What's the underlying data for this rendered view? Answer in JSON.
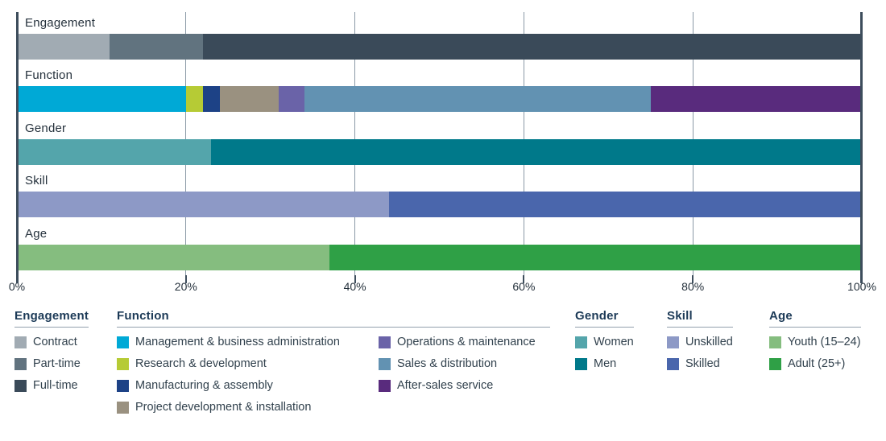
{
  "chart_data": {
    "type": "bar",
    "orientation": "horizontal-stacked",
    "title": "",
    "xlabel": "",
    "ylabel": "",
    "unit": "percent",
    "xlim": [
      0,
      100
    ],
    "grid": true,
    "x_tick_labels": [
      "0%",
      "20%",
      "40%",
      "60%",
      "80%",
      "100%"
    ],
    "x_ticks_pct": [
      0,
      20,
      40,
      60,
      80,
      100
    ],
    "rows": [
      {
        "label": "Engagement",
        "segments": [
          {
            "name": "Contract",
            "value": 11
          },
          {
            "name": "Part-time",
            "value": 11
          },
          {
            "name": "Full-time",
            "value": 78
          }
        ]
      },
      {
        "label": "Function",
        "segments": [
          {
            "name": "Management & business administration",
            "value": 20
          },
          {
            "name": "Research & development",
            "value": 2
          },
          {
            "name": "Manufacturing & assembly",
            "value": 2
          },
          {
            "name": "Project development & installation",
            "value": 7
          },
          {
            "name": "Operations & maintenance",
            "value": 3
          },
          {
            "name": "Sales & distribution",
            "value": 41
          },
          {
            "name": "After-sales service",
            "value": 25
          }
        ]
      },
      {
        "label": "Gender",
        "segments": [
          {
            "name": "Women",
            "value": 23
          },
          {
            "name": "Men",
            "value": 77
          }
        ]
      },
      {
        "label": "Skill",
        "segments": [
          {
            "name": "Unskilled",
            "value": 44
          },
          {
            "name": "Skilled",
            "value": 56
          }
        ]
      },
      {
        "label": "Age",
        "segments": [
          {
            "name": "Youth (15–24)",
            "value": 37
          },
          {
            "name": "Adult (25+)",
            "value": 63
          }
        ]
      }
    ]
  },
  "series_colors": {
    "Contract": "#a1abb3",
    "Part-time": "#61737f",
    "Full-time": "#3a4a59",
    "Management & business administration": "#00a9d6",
    "Research & development": "#b6cb35",
    "Manufacturing & assembly": "#1d4286",
    "Project development & installation": "#9a9180",
    "Operations & maintenance": "#6a63a8",
    "Sales & distribution": "#6292b2",
    "After-sales service": "#592b7d",
    "Women": "#54a5ab",
    "Men": "#00798a",
    "Unskilled": "#8d99c6",
    "Skilled": "#4a66ac",
    "Youth (15–24)": "#85bd7f",
    "Adult (25+)": "#2fa046"
  },
  "style_colors": {
    "gridline": "#8b9aa7",
    "axis_edge": "#3d4d5c",
    "text": "#25313c",
    "legend_heading": "#1c3a57",
    "legend_underline": "#93a1ad"
  },
  "legend": {
    "groups": [
      {
        "title": "Engagement",
        "x": 18,
        "columns": [
          [
            "Contract",
            "Part-time",
            "Full-time"
          ]
        ]
      },
      {
        "title": "Function",
        "x": 145,
        "underline_width": 538,
        "subcol_width": 325,
        "columns": [
          [
            "Management & business administration",
            "Research & development",
            "Manufacturing & assembly",
            "Project development & installation"
          ],
          [
            "Operations & maintenance",
            "Sales & distribution",
            "After-sales service"
          ]
        ]
      },
      {
        "title": "Gender",
        "x": 714,
        "columns": [
          [
            "Women",
            "Men"
          ]
        ]
      },
      {
        "title": "Skill",
        "x": 828,
        "columns": [
          [
            "Unskilled",
            "Skilled"
          ]
        ]
      },
      {
        "title": "Age",
        "x": 955,
        "columns": [
          [
            "Youth (15–24)",
            "Adult (25+)"
          ]
        ]
      }
    ]
  }
}
